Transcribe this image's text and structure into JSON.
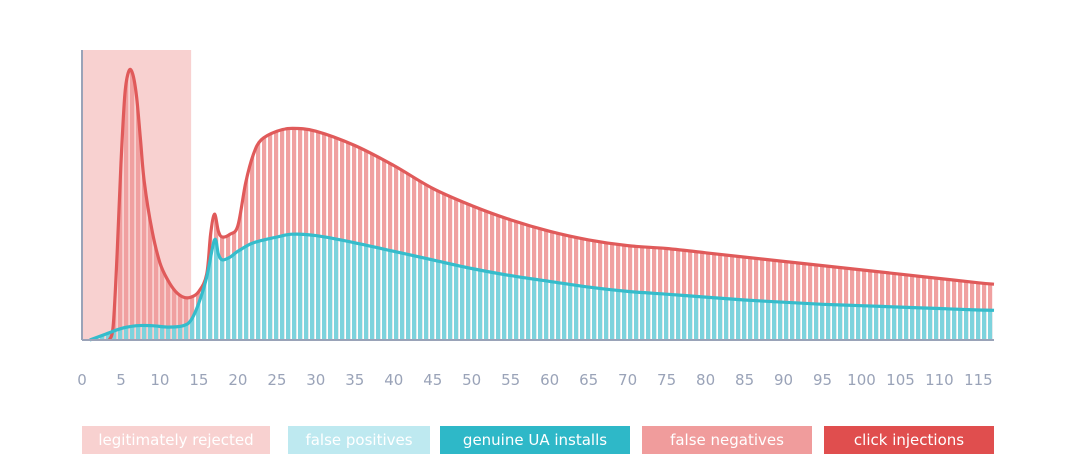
{
  "chart_data": {
    "type": "area",
    "title": "",
    "xlabel": "",
    "ylabel": "",
    "xlim": [
      0,
      117
    ],
    "ylim": [
      0,
      100
    ],
    "x_ticks": [
      0,
      5,
      10,
      15,
      20,
      25,
      30,
      35,
      40,
      45,
      50,
      55,
      60,
      65,
      70,
      75,
      80,
      85,
      90,
      95,
      100,
      105,
      110,
      115
    ],
    "highlight_region": {
      "x_start": 0,
      "x_end": 14,
      "label": "legitimately rejected"
    },
    "series": [
      {
        "name": "click injections",
        "points": [
          [
            3.5,
            0
          ],
          [
            4,
            5
          ],
          [
            4.5,
            30
          ],
          [
            5,
            62
          ],
          [
            5.5,
            86
          ],
          [
            6,
            94
          ],
          [
            6.5,
            93
          ],
          [
            7,
            85
          ],
          [
            7.5,
            70
          ],
          [
            8,
            55
          ],
          [
            9,
            38
          ],
          [
            10,
            27
          ],
          [
            11,
            21
          ],
          [
            12,
            17
          ],
          [
            13,
            15
          ],
          [
            14,
            15
          ],
          [
            15,
            17
          ],
          [
            16,
            23
          ],
          [
            16.5,
            37
          ],
          [
            17,
            44
          ],
          [
            17.5,
            38
          ],
          [
            18,
            36
          ],
          [
            19,
            37
          ],
          [
            20,
            40
          ],
          [
            21,
            55
          ],
          [
            22,
            65
          ],
          [
            23,
            70
          ],
          [
            25,
            73
          ],
          [
            27,
            74
          ],
          [
            30,
            73
          ],
          [
            35,
            68
          ],
          [
            40,
            61
          ],
          [
            45,
            53
          ],
          [
            50,
            47
          ],
          [
            55,
            42
          ],
          [
            60,
            38
          ],
          [
            65,
            35
          ],
          [
            70,
            33
          ],
          [
            75,
            32
          ],
          [
            80,
            30.5
          ],
          [
            85,
            29
          ],
          [
            90,
            27.5
          ],
          [
            95,
            26
          ],
          [
            100,
            24.5
          ],
          [
            105,
            23
          ],
          [
            110,
            21.5
          ],
          [
            115,
            20
          ],
          [
            117,
            19.5
          ]
        ]
      },
      {
        "name": "genuine UA installs",
        "points": [
          [
            1,
            0
          ],
          [
            3,
            2
          ],
          [
            5,
            4
          ],
          [
            7,
            5
          ],
          [
            9,
            5
          ],
          [
            11,
            4.5
          ],
          [
            13,
            5
          ],
          [
            14,
            7
          ],
          [
            15,
            13
          ],
          [
            16,
            22
          ],
          [
            17,
            35
          ],
          [
            17.5,
            30
          ],
          [
            18,
            28
          ],
          [
            19,
            29
          ],
          [
            20,
            31
          ],
          [
            22,
            34
          ],
          [
            25,
            36
          ],
          [
            27,
            37
          ],
          [
            30,
            36.5
          ],
          [
            35,
            34
          ],
          [
            40,
            31
          ],
          [
            45,
            28
          ],
          [
            50,
            25
          ],
          [
            55,
            22.5
          ],
          [
            60,
            20.5
          ],
          [
            65,
            18.5
          ],
          [
            70,
            17
          ],
          [
            75,
            16
          ],
          [
            80,
            15
          ],
          [
            85,
            14
          ],
          [
            90,
            13.2
          ],
          [
            95,
            12.5
          ],
          [
            100,
            12
          ],
          [
            105,
            11.5
          ],
          [
            110,
            11
          ],
          [
            115,
            10.5
          ],
          [
            117,
            10.4
          ]
        ]
      }
    ],
    "legend": [
      {
        "label": "legitimately rejected",
        "color": "#f8d1d0"
      },
      {
        "label": "false positives",
        "color": "#bee9f0"
      },
      {
        "label": "genuine UA installs",
        "color": "#2eb8c8"
      },
      {
        "label": "false negatives",
        "color": "#f09c9c"
      },
      {
        "label": "click injections",
        "color": "#e04e4e"
      }
    ],
    "legend_position": "bottom"
  },
  "colors": {
    "axis": "#9aa3b8",
    "click_injection_line": "#e05a5a",
    "genuine_line": "#35bccb",
    "false_negative_fill": "#f0a0a0",
    "genuine_fill": "#7dd3dd",
    "rejected_fill": "#f8d1d0",
    "false_positive_fill": "#bee9f0"
  }
}
